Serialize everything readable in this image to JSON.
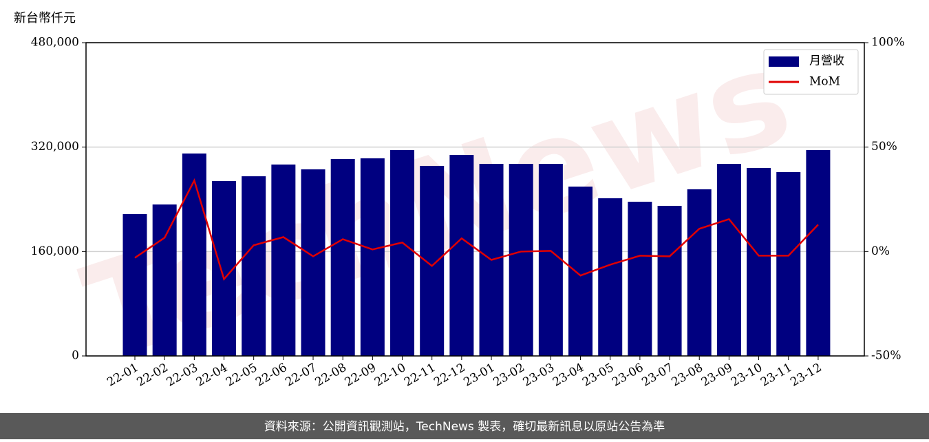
{
  "chart_data": {
    "type": "bar",
    "unit_label": "新台幣仟元",
    "watermark": "TechNews",
    "footer": "資料來源：公開資訊觀測站，TechNews 製表，確切最新訊息以原站公告為準",
    "categories": [
      "22-01",
      "22-02",
      "22-03",
      "22-04",
      "22-05",
      "22-06",
      "22-07",
      "22-08",
      "22-09",
      "22-10",
      "22-11",
      "22-12",
      "23-01",
      "23-02",
      "23-03",
      "23-04",
      "23-05",
      "23-06",
      "23-07",
      "23-08",
      "23-09",
      "23-10",
      "23-11",
      "23-12"
    ],
    "series": [
      {
        "name": "月營收",
        "type": "bar",
        "color": "#000080",
        "values": [
          217300,
          232100,
          310200,
          268000,
          275300,
          293300,
          285900,
          301700,
          302800,
          315400,
          291200,
          308000,
          294300,
          294300,
          294300,
          259500,
          241600,
          236300,
          230000,
          255300,
          294300,
          288000,
          281700,
          315400
        ]
      },
      {
        "name": "MoM",
        "type": "line",
        "axis": "y2",
        "color": "#e00000",
        "values": [
          -3,
          6.6,
          34,
          -13.2,
          3,
          6.9,
          -2.3,
          5.9,
          1,
          4.3,
          -6.9,
          6.3,
          -4,
          0,
          0.3,
          -11.5,
          -6.3,
          -2,
          -2.3,
          10.9,
          15.5,
          -2,
          -2,
          12.9
        ]
      }
    ],
    "ylim": [
      0,
      480000
    ],
    "yticks": [
      0,
      {
        "value": 160000,
        "label": "160,000"
      },
      {
        "value": 320000,
        "label": "320,000"
      },
      {
        "value": 480000,
        "label": "480,000"
      }
    ],
    "y2lim": [
      -50,
      100
    ],
    "y2ticks": [
      {
        "value": -50,
        "label": "-50%"
      },
      {
        "value": 0,
        "label": "0%"
      },
      {
        "value": 50,
        "label": "50%"
      },
      {
        "value": 100,
        "label": "100%"
      }
    ],
    "grid": true,
    "legend": "upper right"
  }
}
